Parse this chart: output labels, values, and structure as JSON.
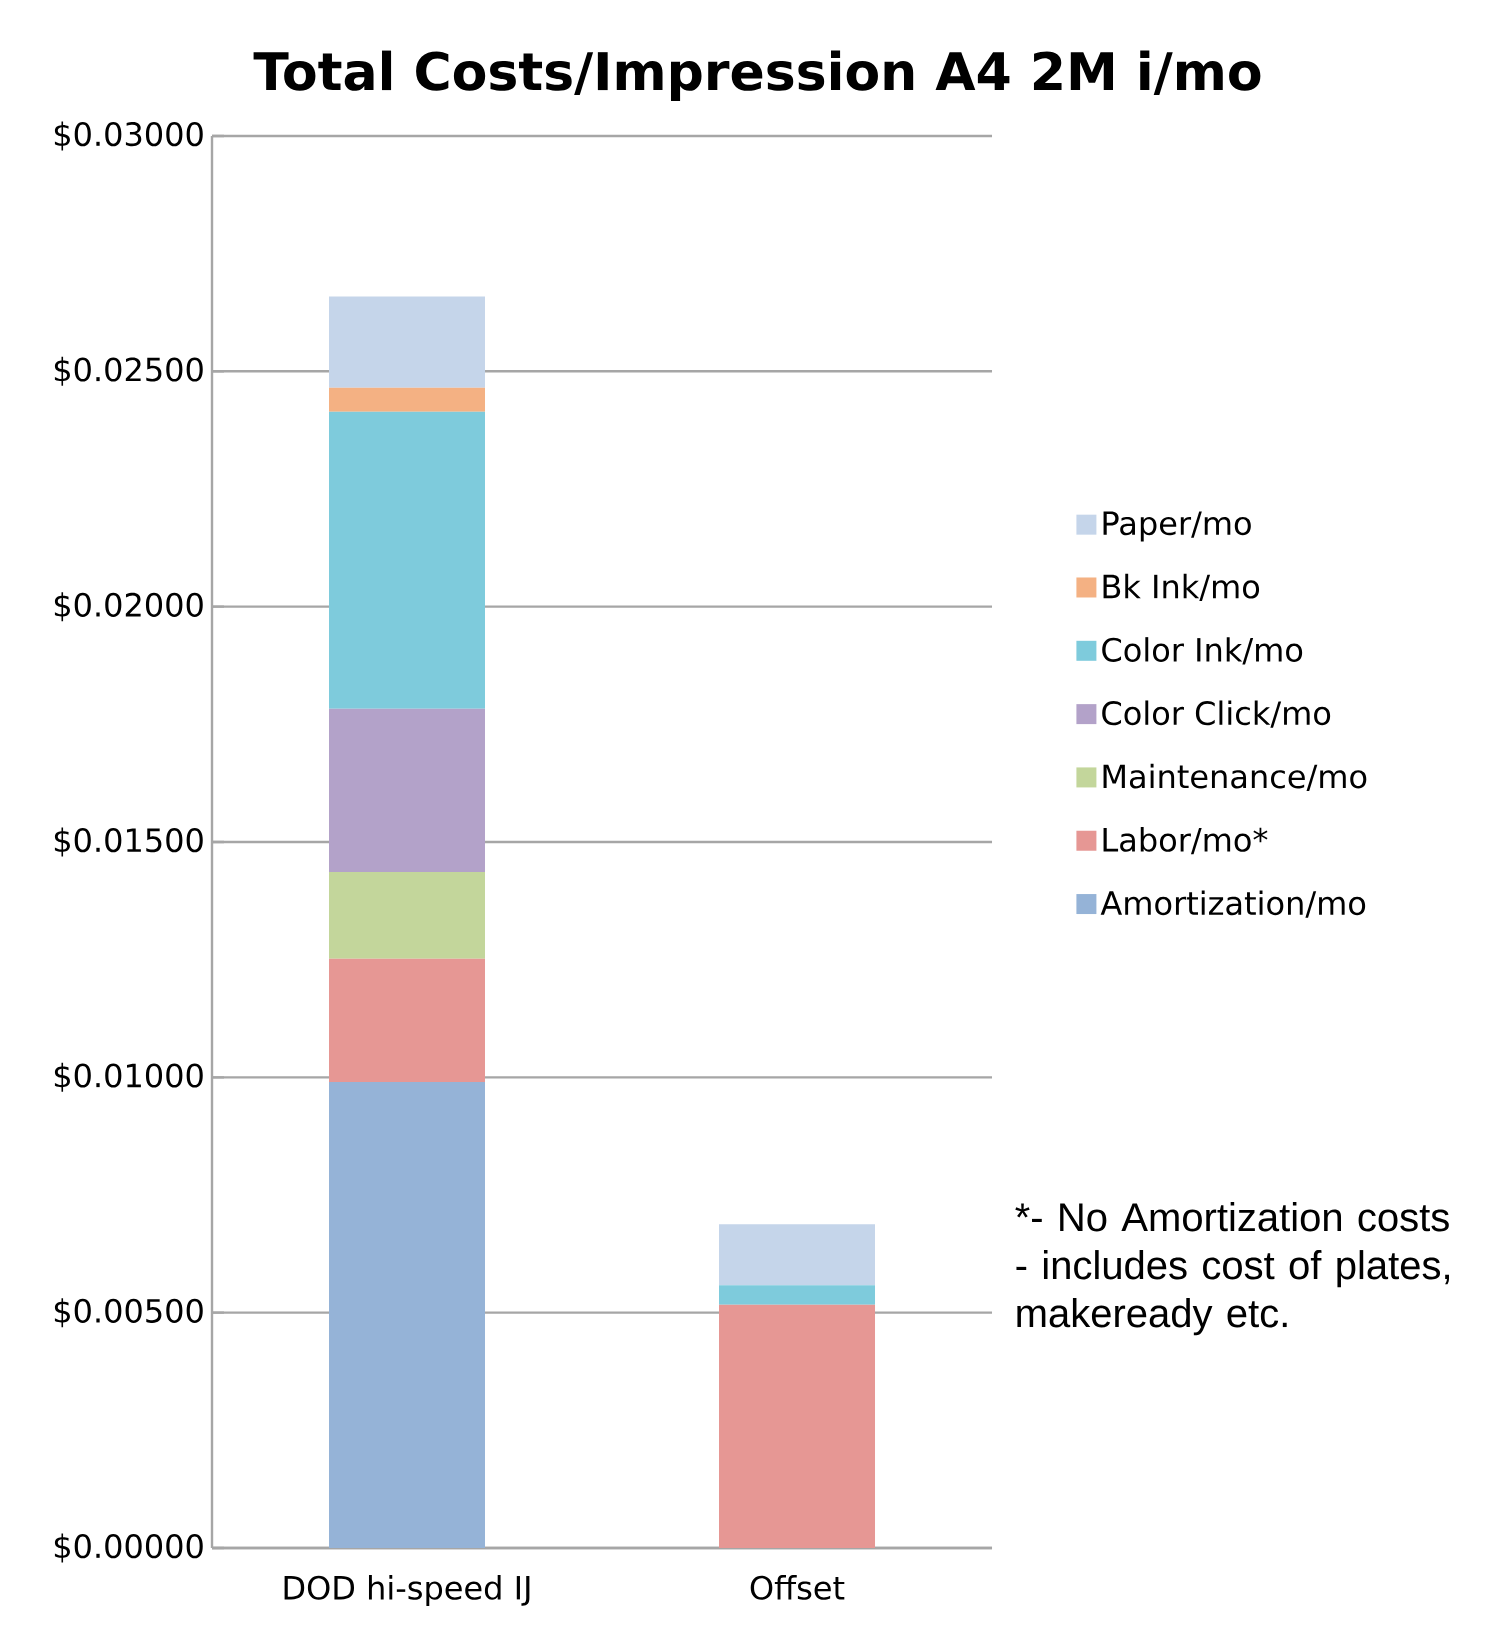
{
  "chart_data": {
    "type": "bar",
    "stacked": true,
    "title": "Total Costs/Impression A4 2M i/mo",
    "categories": [
      "DOD hi-speed IJ",
      "Offset"
    ],
    "series": [
      {
        "name": "Amortization/mo",
        "color": "#95b3d7",
        "values": [
          0.0099,
          0
        ]
      },
      {
        "name": "Labor/mo*",
        "color": "#e69794",
        "values": [
          0.00262,
          0.00517
        ]
      },
      {
        "name": "Maintenance/mo",
        "color": "#c3d69b",
        "values": [
          0.00184,
          0
        ]
      },
      {
        "name": "Color Click/mo",
        "color": "#b3a2c9",
        "values": [
          0.00347,
          0
        ]
      },
      {
        "name": "Color Ink/mo",
        "color": "#7ecbdc",
        "values": [
          0.00631,
          0.00041
        ]
      },
      {
        "name": "Bk Ink/mo",
        "color": "#f4b183",
        "values": [
          0.00051,
          0
        ]
      },
      {
        "name": "Paper/mo",
        "color": "#c5d5ea",
        "values": [
          0.00194,
          0.0013
        ]
      }
    ],
    "ylim": [
      0,
      0.03
    ],
    "yticks": [
      {
        "value": 0,
        "label": "$0.00000"
      },
      {
        "value": 0.005,
        "label": "$0.00500"
      },
      {
        "value": 0.01,
        "label": "$0.01000"
      },
      {
        "value": 0.015,
        "label": "$0.01500"
      },
      {
        "value": 0.02,
        "label": "$0.02000"
      },
      {
        "value": 0.025,
        "label": "$0.02500"
      },
      {
        "value": 0.03,
        "label": "$0.03000"
      }
    ],
    "grid": "y",
    "legend": "right",
    "annotations": [
      "*- No Amortization costs",
      "- includes cost of plates, makeready etc."
    ]
  }
}
